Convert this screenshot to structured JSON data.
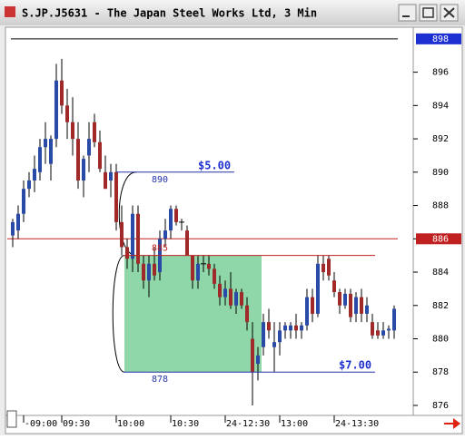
{
  "window": {
    "title": "S.JP.J5631 - The Japan Steel Works Ltd, 3 Min"
  },
  "chart_data": {
    "type": "candlestick",
    "categories": [
      null,
      null,
      "-09:00",
      null,
      null,
      null,
      null,
      null,
      null,
      "09:30",
      null,
      null,
      null,
      null,
      null,
      null,
      null,
      null,
      null,
      "10:00",
      null,
      null,
      null,
      null,
      null,
      null,
      null,
      null,
      null,
      "10:30",
      null,
      null,
      null,
      null,
      null,
      null,
      null,
      null,
      null,
      "24-12:30",
      null,
      null,
      null,
      null,
      null,
      null,
      null,
      null,
      null,
      "13:00",
      null,
      null,
      null,
      null,
      null,
      null,
      null,
      null,
      null,
      "24-13:30",
      null,
      null,
      null,
      null,
      null,
      null,
      null,
      null,
      null,
      null,
      null
    ],
    "open": [
      886.2,
      886.5,
      887.5,
      889,
      889.5,
      890,
      891.5,
      890.5,
      892,
      895.5,
      894,
      893,
      892,
      889.5,
      891,
      893,
      891.8,
      890,
      889.5,
      890,
      887,
      885.5,
      884.8,
      887.5,
      884.5,
      883.5,
      884.5,
      884,
      886,
      886.5,
      887.8,
      887,
      886.5,
      885,
      883.5,
      884.5,
      884.5,
      884.2,
      883.3,
      882.5,
      883,
      882,
      882.8,
      882,
      880,
      878.5,
      879.5,
      881,
      879.5,
      879.8,
      880.5,
      880.5,
      880.8,
      880.5,
      880.8,
      882.5,
      881.5,
      884.5,
      884.8,
      883.5,
      882.8,
      882,
      882.7,
      881.5,
      882.5,
      881.5,
      881,
      880.5,
      880.2,
      880.5,
      880.5
    ],
    "high": [
      887.2,
      888,
      889.5,
      890,
      891,
      892,
      893,
      892.2,
      896.5,
      896.8,
      895,
      894.5,
      893,
      891,
      893,
      893.5,
      892.5,
      891,
      890.5,
      890.5,
      888,
      886,
      888,
      888,
      885,
      885,
      885.5,
      886.5,
      887.2,
      888,
      888,
      887.2,
      886.8,
      885,
      885,
      885,
      885,
      884.5,
      883.8,
      883.5,
      884,
      883,
      883,
      882.5,
      881,
      879.5,
      881.5,
      881.8,
      881,
      881,
      881,
      881,
      881.5,
      881,
      883,
      883,
      885,
      885,
      885,
      884,
      883,
      883,
      883,
      882.8,
      883,
      882.5,
      881.5,
      881,
      881,
      880.8,
      882
    ],
    "low": [
      885.5,
      886,
      887,
      888.5,
      888.8,
      889.5,
      890.5,
      889.5,
      891.5,
      893.5,
      892,
      891,
      889,
      888.5,
      890,
      891.5,
      890,
      889,
      888.5,
      886.5,
      885,
      884.2,
      884,
      884,
      883,
      882.5,
      883.5,
      883.5,
      885.5,
      886,
      886.8,
      886.5,
      885,
      883,
      883,
      884,
      883.8,
      883,
      882,
      882,
      881.8,
      881.5,
      881.8,
      880.5,
      876,
      877.5,
      879,
      880,
      878,
      879,
      880,
      880,
      880,
      880,
      880.5,
      881,
      881.3,
      883.5,
      883.5,
      882.5,
      881.5,
      881.8,
      881,
      881,
      881,
      881,
      880,
      880,
      880,
      880,
      880
    ],
    "close": [
      887,
      887.5,
      889,
      889.5,
      890.2,
      891.5,
      892,
      892,
      895.5,
      894,
      893,
      892,
      889.5,
      890.8,
      892,
      891.8,
      890.2,
      889,
      890,
      887,
      885.5,
      884.8,
      887.5,
      884.5,
      883.5,
      884.5,
      883.8,
      886,
      886.5,
      887.8,
      887,
      887,
      885,
      883.5,
      884.5,
      884.5,
      884.2,
      883.3,
      882.5,
      883,
      882,
      882.8,
      882,
      881,
      878,
      879,
      881,
      880.5,
      879.8,
      880.5,
      880.8,
      880.8,
      880.5,
      880.8,
      882.5,
      881.5,
      884.5,
      884,
      883.8,
      882.8,
      882,
      882.7,
      881.3,
      882.5,
      881.5,
      882,
      880.2,
      880.2,
      880.5,
      880.6,
      881.8
    ],
    "up_color": "#2a4aa8",
    "down_color": "#a02a2a",
    "flat_color": "#000000",
    "ylim": [
      875.4,
      898.7
    ],
    "yticks": [
      876,
      878,
      880,
      882,
      884,
      886,
      888,
      890,
      892,
      894,
      896
    ],
    "top_line": 898,
    "price_line": {
      "value": 886,
      "color": "#c02020"
    },
    "levels": [
      {
        "value": 890,
        "color": "#2233aa"
      },
      {
        "value": 885,
        "color": "#c02020"
      },
      {
        "value": 878,
        "color": "#2233aa"
      }
    ],
    "annotations": [
      "$5.00",
      "$7.00"
    ],
    "zone_color": "#8fd6a8"
  }
}
